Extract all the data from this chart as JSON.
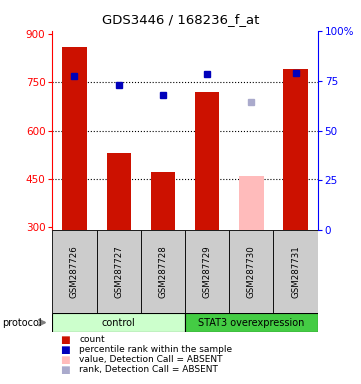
{
  "title": "GDS3446 / 168236_f_at",
  "samples": [
    "GSM287726",
    "GSM287727",
    "GSM287728",
    "GSM287729",
    "GSM287730",
    "GSM287731"
  ],
  "bar_values": [
    860,
    530,
    470,
    720,
    null,
    790
  ],
  "bar_absent_values": [
    null,
    null,
    null,
    null,
    460,
    null
  ],
  "dot_values": [
    770,
    740,
    710,
    775,
    null,
    780
  ],
  "dot_absent_values": [
    null,
    null,
    null,
    null,
    690,
    null
  ],
  "ylim_left": [
    290,
    910
  ],
  "ylim_right": [
    0,
    100
  ],
  "yticks_left": [
    300,
    450,
    600,
    750,
    900
  ],
  "yticks_right": [
    0,
    25,
    50,
    75,
    100
  ],
  "bar_color": "#cc1100",
  "bar_absent_color": "#ffbbbb",
  "dot_color": "#0000bb",
  "dot_absent_color": "#aaaacc",
  "control_color": "#ccffcc",
  "overexpression_color": "#44cc44",
  "sample_box_color": "#cccccc",
  "legend_items": [
    {
      "color": "#cc1100",
      "label": "count"
    },
    {
      "color": "#0000bb",
      "label": "percentile rank within the sample"
    },
    {
      "color": "#ffbbbb",
      "label": "value, Detection Call = ABSENT"
    },
    {
      "color": "#aaaacc",
      "label": "rank, Detection Call = ABSENT"
    }
  ]
}
